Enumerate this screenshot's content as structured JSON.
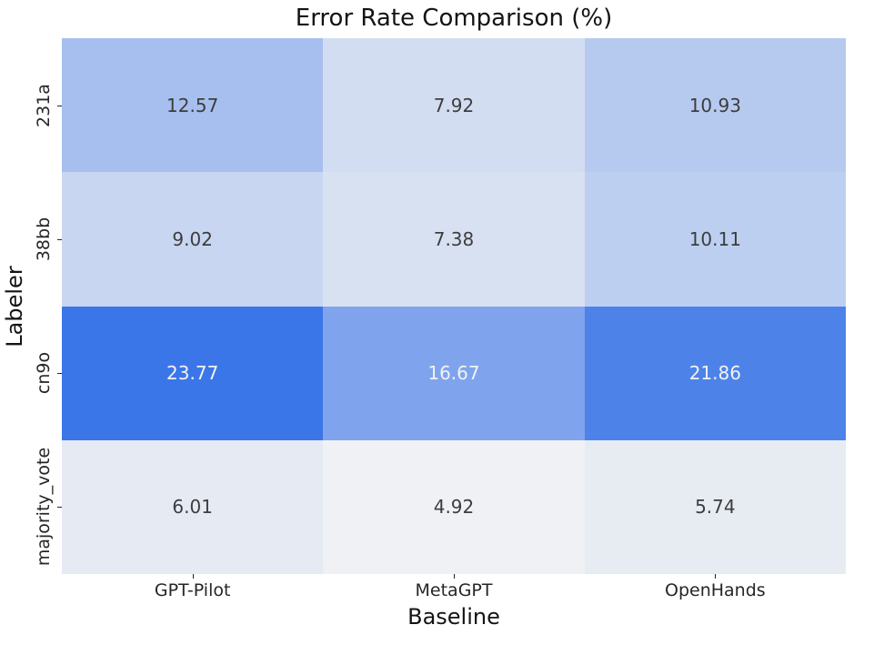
{
  "chart_data": {
    "type": "heatmap",
    "title": "Error Rate Comparison (%)",
    "xlabel": "Baseline",
    "ylabel": "Labeler",
    "columns": [
      "GPT-Pilot",
      "MetaGPT",
      "OpenHands"
    ],
    "rows": [
      "231a",
      "38bb",
      "cn9o",
      "majority_vote"
    ],
    "values": [
      [
        12.57,
        7.92,
        10.93
      ],
      [
        9.02,
        7.38,
        10.11
      ],
      [
        23.77,
        16.67,
        21.86
      ],
      [
        6.01,
        4.92,
        5.74
      ]
    ],
    "value_decimals": 2,
    "colormap": {
      "min_color": "#eff1f4",
      "max_color": "#3b76e8",
      "vmin": 4.92,
      "vmax": 23.77
    },
    "annotation_dark_text": "#3d3d3d",
    "annotation_light_text": "#f2f2f2",
    "tick_color": "#262626",
    "legend": "none",
    "grid": false
  }
}
